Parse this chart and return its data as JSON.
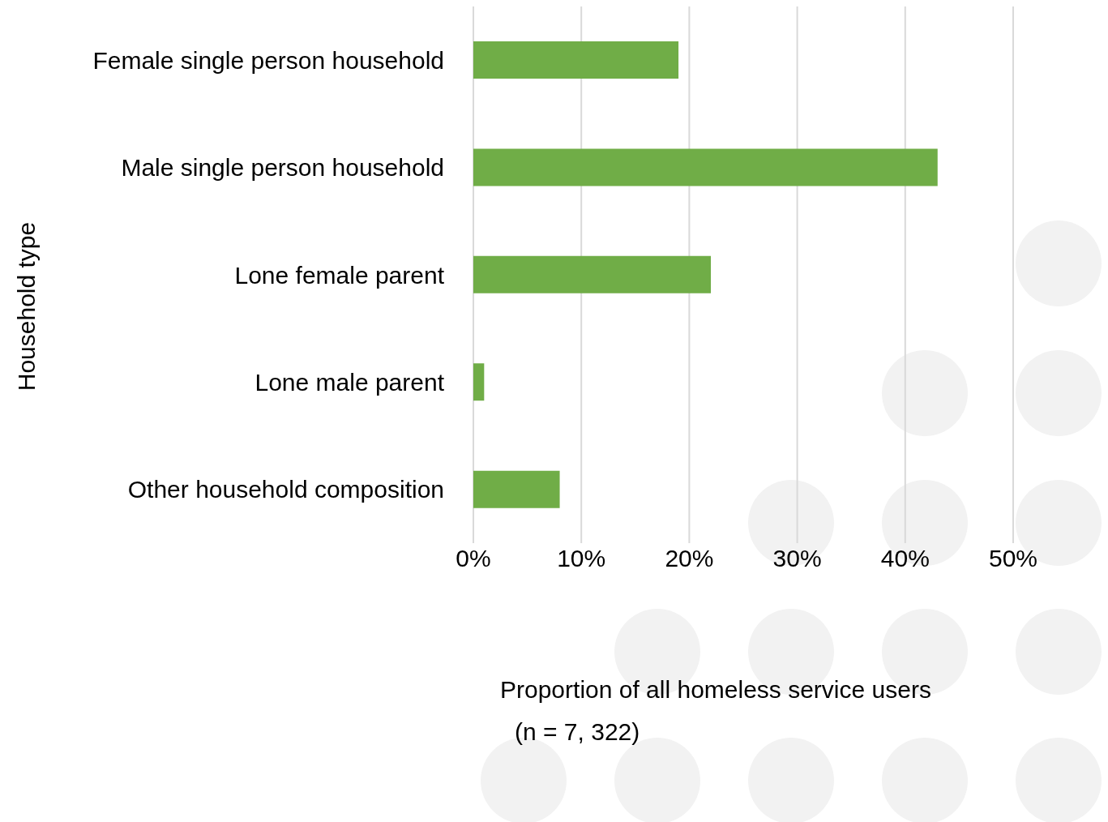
{
  "chart_data": {
    "type": "bar",
    "orientation": "horizontal",
    "categories": [
      "Female single person household",
      "Male single person household",
      "Lone female parent",
      "Lone male parent",
      "Other household composition"
    ],
    "values": [
      19,
      43,
      22,
      1,
      8
    ],
    "color": "#70ad47",
    "xlabel": "Proportion of all homeless service users",
    "ylabel": "Household type",
    "annotations": [
      "(n = 7, 322)"
    ],
    "xlim": [
      0,
      50
    ],
    "xticks": [
      {
        "value": 0,
        "label": "0%"
      },
      {
        "value": 10,
        "label": "10%"
      },
      {
        "value": 20,
        "label": "20%"
      },
      {
        "value": 30,
        "label": "30%"
      },
      {
        "value": 40,
        "label": "40%"
      },
      {
        "value": 50,
        "label": "50%"
      }
    ],
    "grid": "x"
  }
}
